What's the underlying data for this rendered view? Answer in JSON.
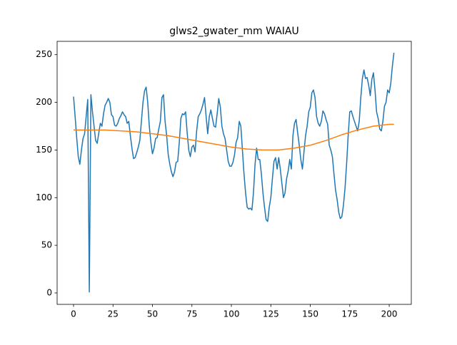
{
  "chart_data": {
    "type": "line",
    "title": "glws2_gwater_mm WAIAU",
    "x": [
      0,
      1,
      2,
      3,
      4,
      5,
      6,
      7,
      8,
      9,
      10,
      11,
      12,
      13,
      14,
      15,
      16,
      17,
      18,
      19,
      20,
      21,
      22,
      23,
      24,
      25,
      26,
      27,
      28,
      29,
      30,
      31,
      32,
      33,
      34,
      35,
      36,
      37,
      38,
      39,
      40,
      41,
      42,
      43,
      44,
      45,
      46,
      47,
      48,
      49,
      50,
      51,
      52,
      53,
      54,
      55,
      56,
      57,
      58,
      59,
      60,
      61,
      62,
      63,
      64,
      65,
      66,
      67,
      68,
      69,
      70,
      71,
      72,
      73,
      74,
      75,
      76,
      77,
      78,
      79,
      80,
      81,
      82,
      83,
      84,
      85,
      86,
      87,
      88,
      89,
      90,
      91,
      92,
      93,
      94,
      95,
      96,
      97,
      98,
      99,
      100,
      101,
      102,
      103,
      104,
      105,
      106,
      107,
      108,
      109,
      110,
      111,
      112,
      113,
      114,
      115,
      116,
      117,
      118,
      119,
      120,
      121,
      122,
      123,
      124,
      125,
      126,
      127,
      128,
      129,
      130,
      131,
      132,
      133,
      134,
      135,
      136,
      137,
      138,
      139,
      140,
      141,
      142,
      143,
      144,
      145,
      146,
      147,
      148,
      149,
      150,
      151,
      152,
      153,
      154,
      155,
      156,
      157,
      158,
      159,
      160,
      161,
      162,
      163,
      164,
      165,
      166,
      167,
      168,
      169,
      170,
      171,
      172,
      173,
      174,
      175,
      176,
      177,
      178,
      179,
      180,
      181,
      182,
      183,
      184,
      185,
      186,
      187,
      188,
      189,
      190,
      191,
      192,
      193,
      194,
      195,
      196,
      197,
      198,
      199,
      200,
      201,
      202,
      203
    ],
    "series": [
      {
        "color": "#1f77b4",
        "values": [
          206,
          185,
          163,
          143,
          135,
          150,
          162,
          167,
          185,
          203,
          1,
          208,
          190,
          175,
          160,
          157,
          168,
          178,
          175,
          188,
          197,
          200,
          204,
          200,
          187,
          185,
          176,
          175,
          178,
          183,
          186,
          190,
          187,
          185,
          178,
          180,
          165,
          152,
          141,
          142,
          147,
          153,
          160,
          180,
          200,
          212,
          216,
          200,
          175,
          158,
          146,
          152,
          162,
          163,
          172,
          180,
          205,
          208,
          180,
          165,
          145,
          135,
          127,
          122,
          127,
          137,
          138,
          158,
          183,
          188,
          187,
          190,
          168,
          150,
          143,
          153,
          155,
          148,
          170,
          185,
          188,
          192,
          198,
          205,
          185,
          167,
          185,
          192,
          183,
          175,
          174,
          188,
          204,
          195,
          175,
          167,
          162,
          150,
          138,
          133,
          133,
          137,
          145,
          158,
          163,
          180,
          175,
          150,
          125,
          105,
          90,
          88,
          89,
          87,
          105,
          135,
          152,
          140,
          140,
          125,
          105,
          90,
          77,
          75,
          90,
          100,
          120,
          138,
          142,
          130,
          142,
          130,
          115,
          100,
          105,
          120,
          128,
          140,
          130,
          165,
          178,
          182,
          168,
          155,
          140,
          130,
          148,
          165,
          175,
          190,
          195,
          210,
          213,
          205,
          185,
          178,
          175,
          180,
          191,
          188,
          182,
          177,
          155,
          150,
          143,
          125,
          108,
          98,
          85,
          78,
          80,
          92,
          110,
          135,
          165,
          190,
          191,
          185,
          180,
          175,
          170,
          180,
          205,
          225,
          234,
          225,
          226,
          218,
          207,
          224,
          231,
          213,
          190,
          183,
          172,
          170,
          180,
          196,
          200,
          213,
          210,
          220,
          238,
          252
        ]
      },
      {
        "color": "#ff7f0e",
        "x": [
          0,
          10,
          20,
          30,
          40,
          50,
          60,
          70,
          80,
          90,
          100,
          110,
          120,
          130,
          140,
          150,
          160,
          170,
          180,
          190,
          200,
          203
        ],
        "values": [
          171,
          171,
          171,
          170,
          169,
          167,
          165,
          162,
          159,
          156,
          153,
          151,
          150,
          150,
          152,
          155,
          160,
          166,
          171,
          175,
          177,
          177
        ]
      }
    ],
    "xlim": [
      -10.4,
      214
    ],
    "ylim": [
      -12,
      264
    ],
    "xticks": [
      0,
      25,
      50,
      75,
      100,
      125,
      150,
      175,
      200
    ],
    "yticks": [
      0,
      50,
      100,
      150,
      200,
      250
    ]
  }
}
